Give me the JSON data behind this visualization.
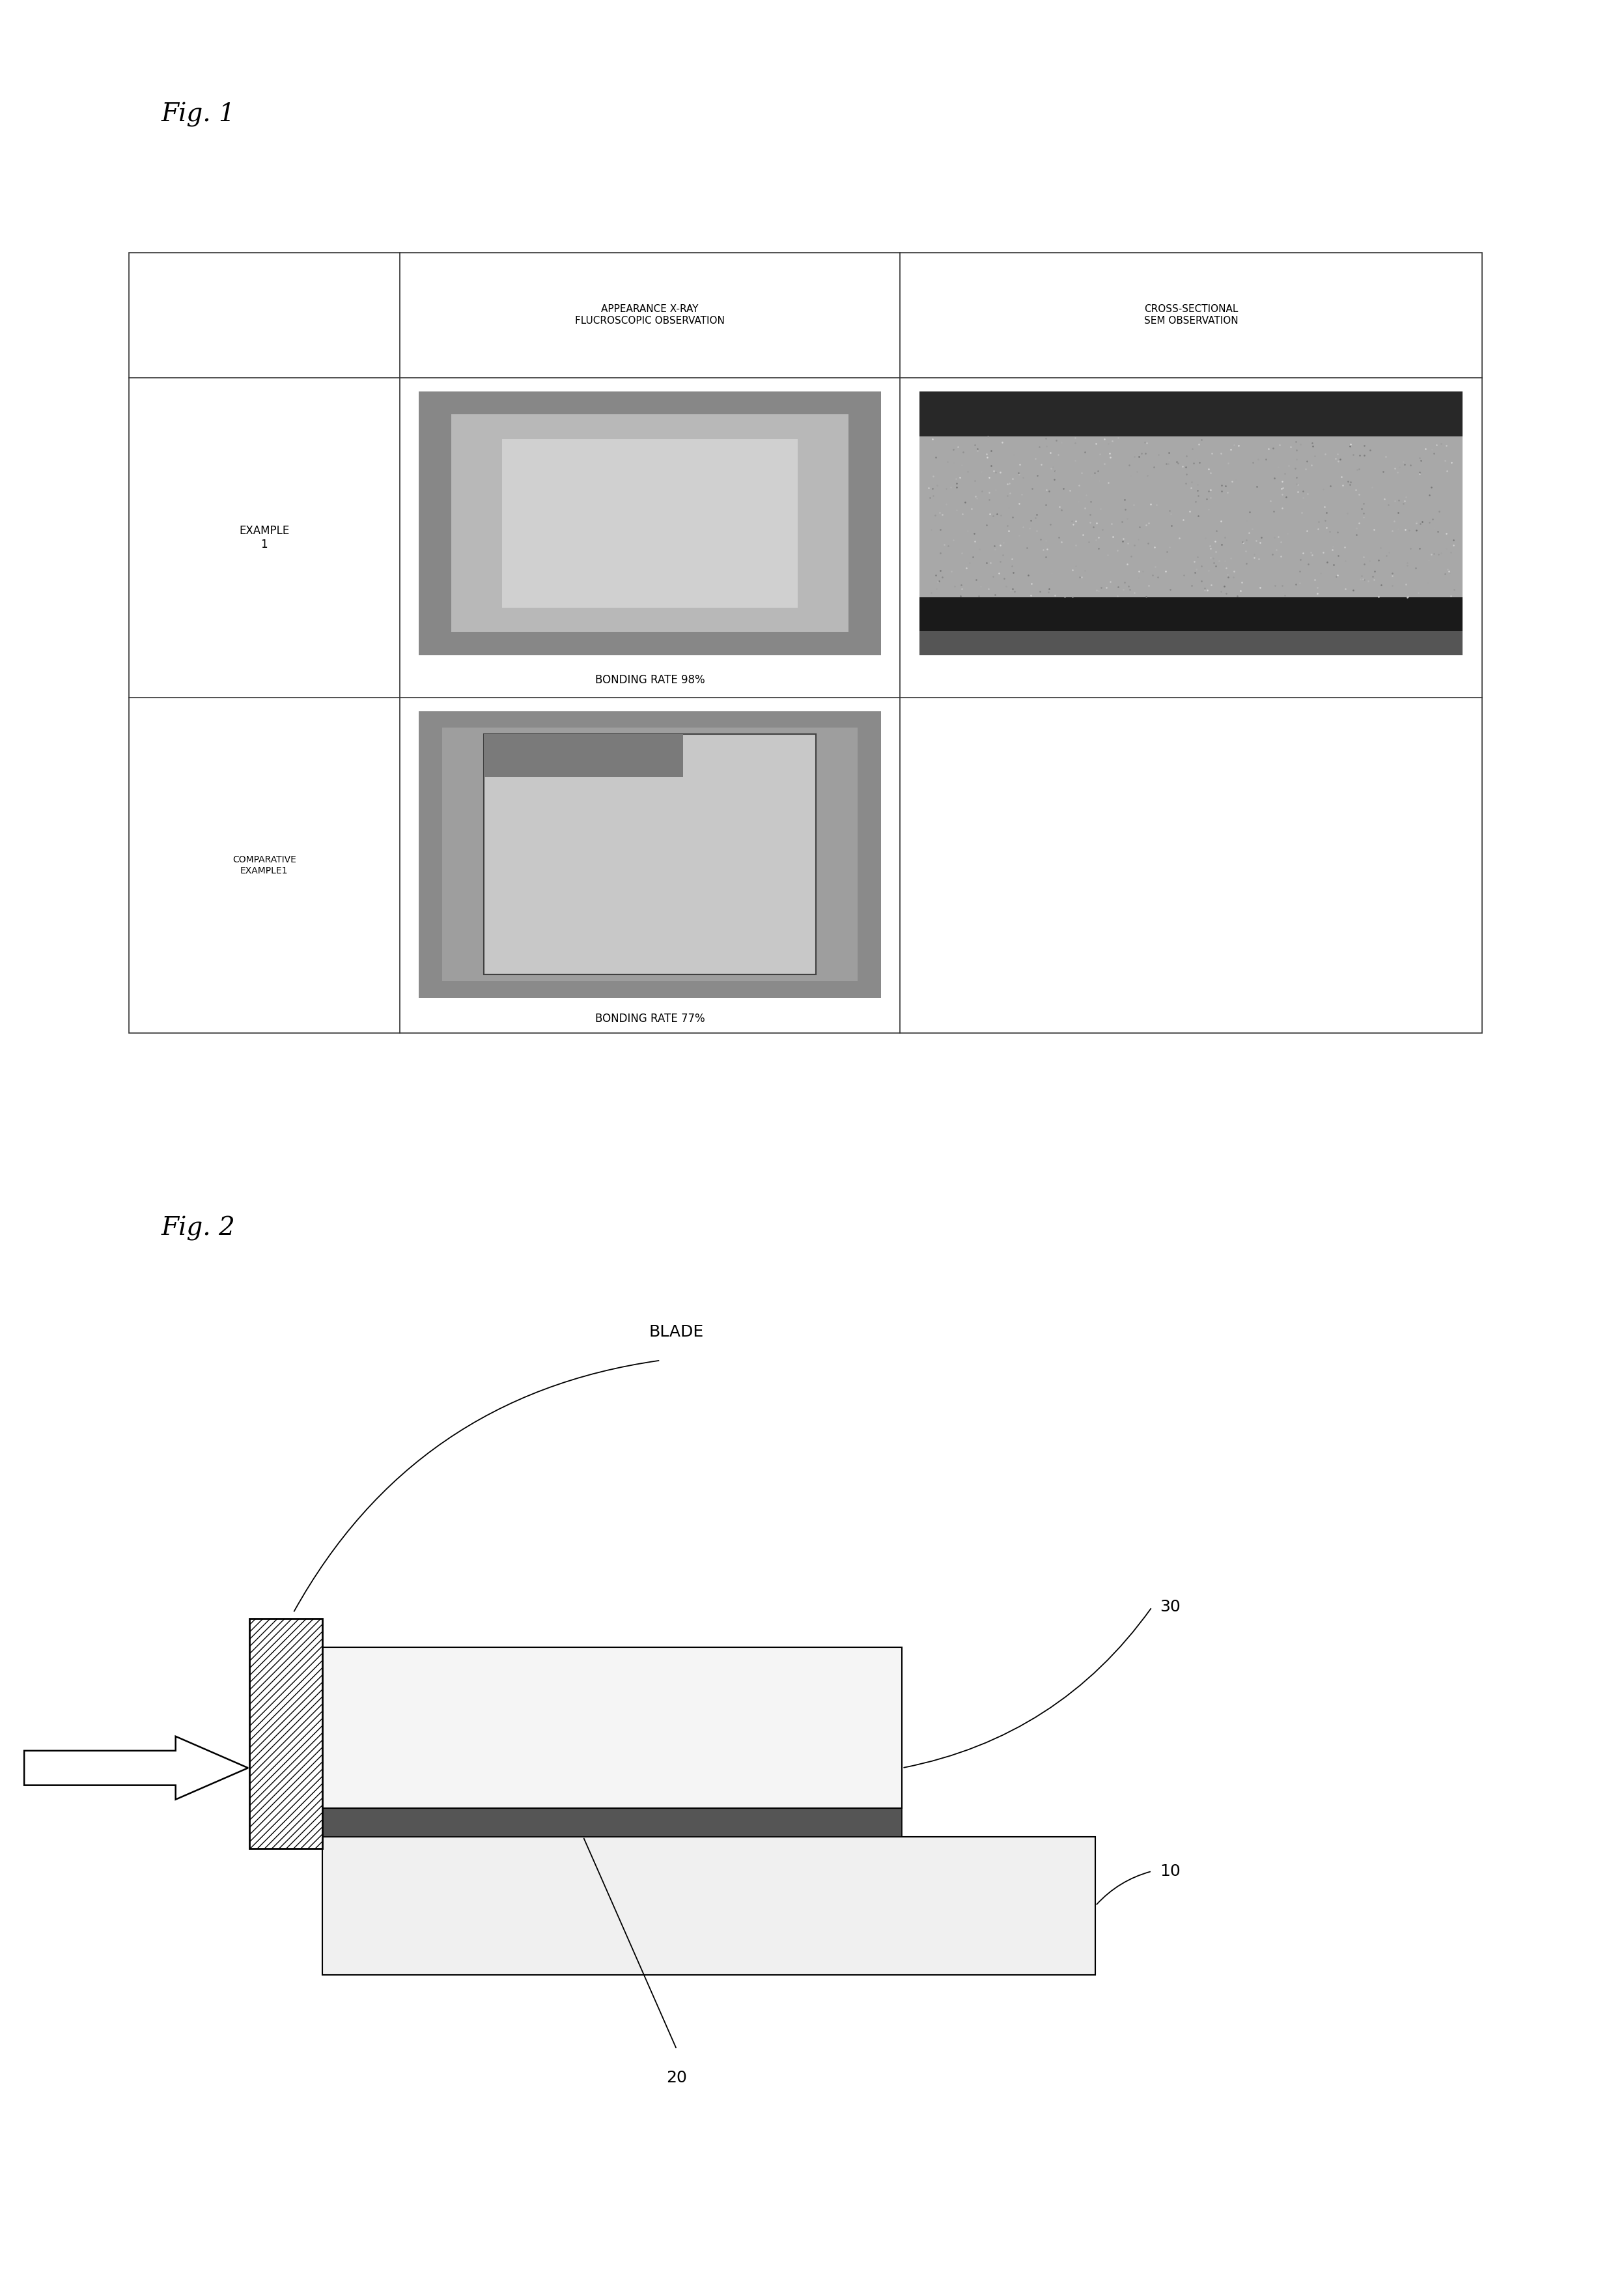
{
  "fig1_title": "Fig. 1",
  "fig2_title": "Fig. 2",
  "table_header_col2": "APPEARANCE X-RAY\nFLUCROSCOPIC OBSERVATION",
  "table_header_col3": "CROSS-SECTIONAL\nSEM OBSERVATION",
  "row1_label": "EXAMPLE\n1",
  "row1_bonding": "BONDING RATE 98%",
  "row2_label": "COMPARATIVE\nEXAMPLE1",
  "row2_bonding": "BONDING RATE 77%",
  "blade_label": "BLADE",
  "label_10": "10",
  "label_20": "20",
  "label_30": "30",
  "bg_color": "#ffffff",
  "table_line_color": "#333333",
  "fig1_title_fontsize": 28,
  "fig2_title_fontsize": 28,
  "header_fontsize": 11,
  "row_label_fontsize": 12,
  "bonding_fontsize": 12,
  "diagram_fontsize": 18
}
